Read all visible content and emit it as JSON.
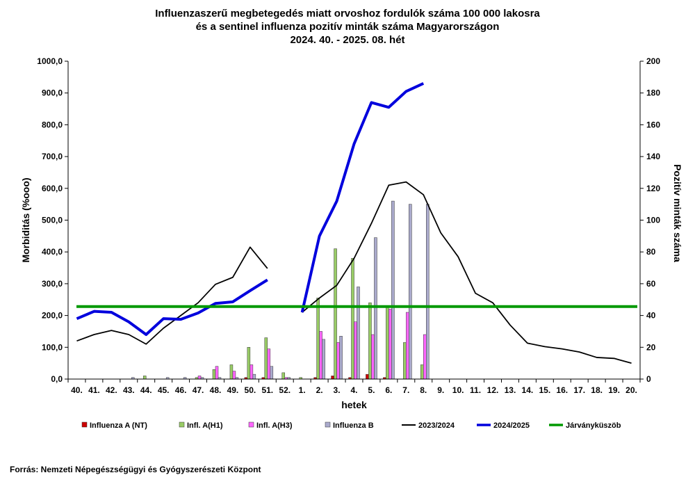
{
  "chart_data": {
    "type": "bar+line",
    "title": "Influenzaszerű megbetegedés miatt orvoshoz fordulók száma 100 000 lakosra",
    "subtitle": "és a sentinel influenza pozitív minták száma Magyarországon",
    "period": "2024. 40. - 2025. 08. hét",
    "xlabel": "hetek",
    "ylabel_left": "Morbiditás (%ooo)",
    "ylabel_right": "Pozitív minták száma",
    "ylim_left": [
      0,
      1000
    ],
    "ylim_right": [
      0,
      200
    ],
    "yticks_left": [
      "0,0",
      "100,0",
      "200,0",
      "300,0",
      "400,0",
      "500,0",
      "600,0",
      "700,0",
      "800,0",
      "900,0",
      "1000,0"
    ],
    "yticks_right": [
      "0",
      "20",
      "40",
      "60",
      "80",
      "100",
      "120",
      "140",
      "160",
      "180",
      "200"
    ],
    "categories": [
      "40.",
      "41.",
      "42.",
      "43.",
      "44.",
      "45.",
      "46.",
      "47.",
      "48.",
      "49.",
      "50.",
      "51.",
      "52.",
      "1.",
      "2.",
      "3.",
      "4.",
      "5.",
      "6.",
      "7.",
      "8.",
      "9.",
      "10.",
      "11.",
      "12.",
      "13.",
      "14.",
      "15.",
      "16.",
      "17.",
      "18.",
      "19.",
      "20."
    ],
    "bar_series": [
      {
        "name": "Influenza A (NT)",
        "color": "#cc0000",
        "values": [
          0,
          0,
          0,
          0,
          0,
          0,
          0,
          0,
          0,
          0,
          1,
          1,
          0,
          0,
          1,
          2,
          1,
          3,
          1,
          0,
          0,
          null,
          null,
          null,
          null,
          null,
          null,
          null,
          null,
          null,
          null,
          null,
          null
        ]
      },
      {
        "name": "Infl. A(H1)",
        "color": "#99cc66",
        "values": [
          0,
          0,
          0,
          0,
          2,
          0,
          0,
          1,
          6,
          9,
          20,
          26,
          4,
          1,
          51,
          82,
          76,
          48,
          45,
          23,
          9,
          null,
          null,
          null,
          null,
          null,
          null,
          null,
          null,
          null,
          null,
          null,
          null
        ]
      },
      {
        "name": "Infl. A(H3)",
        "color": "#ff66ff",
        "values": [
          0,
          0,
          0,
          0,
          0,
          0,
          0,
          2,
          8,
          5,
          9,
          19,
          1,
          0,
          30,
          23,
          36,
          28,
          44,
          42,
          28,
          null,
          null,
          null,
          null,
          null,
          null,
          null,
          null,
          null,
          null,
          null,
          null
        ]
      },
      {
        "name": "Influenza B",
        "color": "#aaaacc",
        "values": [
          0,
          0,
          0,
          1,
          0,
          1,
          1,
          1,
          1,
          1,
          3,
          8,
          1,
          0,
          25,
          27,
          58,
          89,
          112,
          110,
          110,
          null,
          null,
          null,
          null,
          null,
          null,
          null,
          null,
          null,
          null,
          null,
          null
        ]
      }
    ],
    "line_series": [
      {
        "name": "2023/2024",
        "color": "#000000",
        "values": [
          120,
          140,
          153,
          140,
          110,
          160,
          200,
          240,
          298,
          320,
          415,
          348,
          null,
          210,
          255,
          295,
          380,
          490,
          610,
          620,
          580,
          460,
          385,
          270,
          240,
          170,
          113,
          102,
          95,
          85,
          68,
          65,
          50
        ]
      },
      {
        "name": "2024/2025",
        "color": "#0000dd",
        "values": [
          190,
          213,
          210,
          180,
          140,
          190,
          188,
          208,
          238,
          243,
          278,
          312,
          null,
          210,
          450,
          560,
          740,
          870,
          855,
          905,
          930,
          null,
          null,
          null,
          null,
          null,
          null,
          null,
          null,
          null,
          null,
          null,
          null
        ]
      },
      {
        "name": "Járványküszöb",
        "color": "#009900",
        "values": [
          228
        ]
      }
    ],
    "legend": [
      {
        "label": "Influenza A (NT)",
        "kind": "bar",
        "color": "#cc0000"
      },
      {
        "label": "Infl. A(H1)",
        "kind": "bar",
        "color": "#99cc66"
      },
      {
        "label": "Infl. A(H3)",
        "kind": "bar",
        "color": "#ff66ff"
      },
      {
        "label": "Influenza B",
        "kind": "bar",
        "color": "#aaaacc"
      },
      {
        "label": "2023/2024",
        "kind": "line",
        "color": "#000000"
      },
      {
        "label": "2024/2025",
        "kind": "line",
        "color": "#0000dd"
      },
      {
        "label": "Járványküszöb",
        "kind": "line",
        "color": "#009900"
      }
    ],
    "legend_position": "bottom",
    "grid": false
  },
  "source": "Forrás: Nemzeti Népegészségügyi és Gyógyszerészeti Központ"
}
